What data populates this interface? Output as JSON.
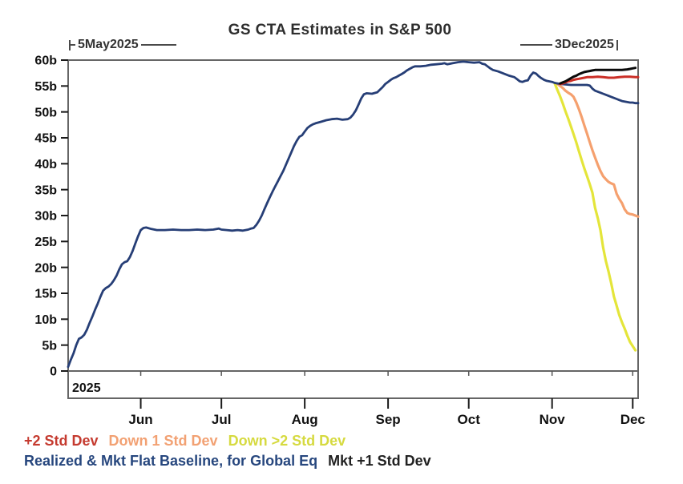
{
  "title": "GS CTA Estimates in S&P 500",
  "annotations": {
    "start_label": "5May2025",
    "end_label": "3Dec2025"
  },
  "legend": {
    "row1": [
      {
        "label": "+2 Std Dev",
        "color": "#c53b30"
      },
      {
        "label": "Down 1 Std Dev",
        "color": "#f2a173"
      },
      {
        "label": "Down >2 Std Dev",
        "color": "#d6da40"
      }
    ],
    "row2": [
      {
        "label": "Realized & Mkt Flat Baseline, for Global Eq",
        "color": "#27477e"
      },
      {
        "label": "Mkt +1 Std Dev",
        "color": "#222222"
      }
    ]
  },
  "chart_data": {
    "type": "line",
    "title": "GS CTA Estimates in S&P 500",
    "units": "billions USD (b)",
    "frame_color": "#666666",
    "grid": false,
    "x_axis": {
      "unit": "days since 5May2025",
      "domain_days": [
        0,
        212
      ],
      "start_label": "5May2025",
      "end_label": "3Dec2025",
      "year": "2025",
      "ticks": [
        {
          "label": "Jun",
          "day": 27
        },
        {
          "label": "Jul",
          "day": 57
        },
        {
          "label": "Aug",
          "day": 88
        },
        {
          "label": "Sep",
          "day": 119
        },
        {
          "label": "Oct",
          "day": 149
        },
        {
          "label": "Nov",
          "day": 180
        },
        {
          "label": "Dec",
          "day": 210
        }
      ]
    },
    "y_axis": {
      "min": 0,
      "max": 60,
      "ticks": [
        {
          "value": 0,
          "label": "0"
        },
        {
          "value": 5,
          "label": "5b"
        },
        {
          "value": 10,
          "label": "10b"
        },
        {
          "value": 15,
          "label": "15b"
        },
        {
          "value": 20,
          "label": "20b"
        },
        {
          "value": 25,
          "label": "25b"
        },
        {
          "value": 30,
          "label": "30b"
        },
        {
          "value": 35,
          "label": "35b"
        },
        {
          "value": 40,
          "label": "40b"
        },
        {
          "value": 45,
          "label": "45b"
        },
        {
          "value": 50,
          "label": "50b"
        },
        {
          "value": 55,
          "label": "55b"
        },
        {
          "value": 60,
          "label": "60b"
        }
      ]
    },
    "series": [
      {
        "id": "down-gt2-std-dev",
        "name": "Down >2 Std Dev",
        "color": "#e4e53a",
        "width": 3.2,
        "points": [
          [
            181,
            55.5
          ],
          [
            182,
            54.2
          ],
          [
            183,
            53.0
          ],
          [
            184,
            51.6
          ],
          [
            185,
            50.1
          ],
          [
            186,
            48.7
          ],
          [
            187,
            47.2
          ],
          [
            188,
            45.7
          ],
          [
            189,
            44.1
          ],
          [
            190,
            42.4
          ],
          [
            191,
            40.7
          ],
          [
            192,
            39.1
          ],
          [
            193,
            37.6
          ],
          [
            194,
            36.1
          ],
          [
            195,
            34.4
          ],
          [
            196,
            31.5
          ],
          [
            197,
            29.5
          ],
          [
            198,
            27.2
          ],
          [
            199,
            23.8
          ],
          [
            200,
            21.2
          ],
          [
            201,
            19.2
          ],
          [
            202,
            16.9
          ],
          [
            203,
            14.4
          ],
          [
            204,
            12.6
          ],
          [
            205,
            10.8
          ],
          [
            206,
            9.4
          ],
          [
            207,
            8.2
          ],
          [
            208,
            6.8
          ],
          [
            209,
            5.6
          ],
          [
            210,
            4.8
          ],
          [
            211,
            4.0
          ]
        ]
      },
      {
        "id": "down-1-std-dev",
        "name": "Down 1 Std Dev",
        "color": "#f5a06e",
        "width": 3.2,
        "points": [
          [
            182,
            55.4
          ],
          [
            183,
            55.0
          ],
          [
            184,
            54.6
          ],
          [
            185,
            54.1
          ],
          [
            186,
            53.7
          ],
          [
            187,
            53.4
          ],
          [
            188,
            52.9
          ],
          [
            189,
            51.8
          ],
          [
            190,
            50.5
          ],
          [
            191,
            49.0
          ],
          [
            192,
            47.4
          ],
          [
            193,
            45.8
          ],
          [
            194,
            44.2
          ],
          [
            195,
            42.6
          ],
          [
            196,
            41.2
          ],
          [
            197,
            39.8
          ],
          [
            198,
            38.6
          ],
          [
            199,
            37.6
          ],
          [
            200,
            37.0
          ],
          [
            201,
            36.5
          ],
          [
            202,
            36.2
          ],
          [
            203,
            36.0
          ],
          [
            204,
            34.2
          ],
          [
            205,
            33.2
          ],
          [
            206,
            32.4
          ],
          [
            207,
            31.2
          ],
          [
            208,
            30.5
          ],
          [
            209,
            30.3
          ],
          [
            210,
            30.2
          ],
          [
            211,
            30.0
          ],
          [
            212,
            29.8
          ]
        ]
      },
      {
        "id": "realized-baseline",
        "name": "Realized & Mkt Flat Baseline, for Global Eq",
        "color": "#263e76",
        "width": 2.8,
        "points": [
          [
            0,
            0.8
          ],
          [
            1,
            2.2
          ],
          [
            2,
            3.4
          ],
          [
            3,
            5.0
          ],
          [
            4,
            6.2
          ],
          [
            5,
            6.5
          ],
          [
            6,
            7.0
          ],
          [
            7,
            8.0
          ],
          [
            8,
            9.3
          ],
          [
            9,
            10.5
          ],
          [
            10,
            11.8
          ],
          [
            11,
            13.0
          ],
          [
            12,
            14.3
          ],
          [
            13,
            15.5
          ],
          [
            14,
            16.0
          ],
          [
            15,
            16.3
          ],
          [
            16,
            16.8
          ],
          [
            17,
            17.5
          ],
          [
            18,
            18.4
          ],
          [
            19,
            19.6
          ],
          [
            20,
            20.6
          ],
          [
            21,
            21.0
          ],
          [
            22,
            21.2
          ],
          [
            23,
            22.0
          ],
          [
            24,
            23.2
          ],
          [
            25,
            24.6
          ],
          [
            26,
            26.0
          ],
          [
            27,
            27.2
          ],
          [
            28,
            27.6
          ],
          [
            29,
            27.7
          ],
          [
            31,
            27.4
          ],
          [
            33,
            27.2
          ],
          [
            36,
            27.2
          ],
          [
            39,
            27.3
          ],
          [
            42,
            27.2
          ],
          [
            45,
            27.2
          ],
          [
            48,
            27.3
          ],
          [
            51,
            27.2
          ],
          [
            54,
            27.3
          ],
          [
            56,
            27.5
          ],
          [
            57,
            27.3
          ],
          [
            59,
            27.2
          ],
          [
            61,
            27.1
          ],
          [
            63,
            27.2
          ],
          [
            65,
            27.1
          ],
          [
            67,
            27.3
          ],
          [
            68,
            27.5
          ],
          [
            69,
            27.6
          ],
          [
            70,
            28.2
          ],
          [
            71,
            29.0
          ],
          [
            72,
            30.0
          ],
          [
            73,
            31.2
          ],
          [
            74,
            32.4
          ],
          [
            75,
            33.5
          ],
          [
            76,
            34.6
          ],
          [
            77,
            35.6
          ],
          [
            78,
            36.6
          ],
          [
            79,
            37.6
          ],
          [
            80,
            38.6
          ],
          [
            81,
            39.8
          ],
          [
            82,
            41.0
          ],
          [
            83,
            42.2
          ],
          [
            84,
            43.4
          ],
          [
            85,
            44.4
          ],
          [
            86,
            45.2
          ],
          [
            87,
            45.5
          ],
          [
            88,
            46.2
          ],
          [
            89,
            46.9
          ],
          [
            90,
            47.3
          ],
          [
            91,
            47.6
          ],
          [
            92,
            47.8
          ],
          [
            94,
            48.1
          ],
          [
            96,
            48.4
          ],
          [
            98,
            48.6
          ],
          [
            100,
            48.7
          ],
          [
            102,
            48.5
          ],
          [
            104,
            48.6
          ],
          [
            105,
            48.9
          ],
          [
            106,
            49.5
          ],
          [
            107,
            50.3
          ],
          [
            108,
            51.4
          ],
          [
            109,
            52.6
          ],
          [
            110,
            53.4
          ],
          [
            111,
            53.6
          ],
          [
            113,
            53.5
          ],
          [
            115,
            53.8
          ],
          [
            116,
            54.3
          ],
          [
            117,
            54.8
          ],
          [
            118,
            55.4
          ],
          [
            119,
            55.8
          ],
          [
            120,
            56.2
          ],
          [
            121,
            56.5
          ],
          [
            122,
            56.7
          ],
          [
            123,
            57.0
          ],
          [
            124,
            57.3
          ],
          [
            125,
            57.6
          ],
          [
            126,
            58.0
          ],
          [
            127,
            58.3
          ],
          [
            128,
            58.6
          ],
          [
            129,
            58.8
          ],
          [
            131,
            58.8
          ],
          [
            133,
            58.9
          ],
          [
            135,
            59.1
          ],
          [
            137,
            59.2
          ],
          [
            139,
            59.3
          ],
          [
            140,
            59.4
          ],
          [
            141,
            59.2
          ],
          [
            143,
            59.4
          ],
          [
            145,
            59.6
          ],
          [
            147,
            59.7
          ],
          [
            149,
            59.6
          ],
          [
            151,
            59.5
          ],
          [
            153,
            59.6
          ],
          [
            154,
            59.3
          ],
          [
            155,
            59.2
          ],
          [
            156,
            58.8
          ],
          [
            157,
            58.4
          ],
          [
            158,
            58.1
          ],
          [
            160,
            57.8
          ],
          [
            162,
            57.4
          ],
          [
            164,
            57.0
          ],
          [
            166,
            56.7
          ],
          [
            167,
            56.3
          ],
          [
            168,
            55.9
          ],
          [
            169,
            55.8
          ],
          [
            170,
            56.0
          ],
          [
            171,
            56.1
          ],
          [
            172,
            57.0
          ],
          [
            173,
            57.6
          ],
          [
            174,
            57.4
          ],
          [
            175,
            56.9
          ],
          [
            176,
            56.5
          ],
          [
            177,
            56.2
          ],
          [
            178,
            56.0
          ],
          [
            180,
            55.8
          ],
          [
            181,
            55.6
          ],
          [
            182,
            55.5
          ],
          [
            183,
            55.4
          ],
          [
            185,
            55.3
          ],
          [
            187,
            55.2
          ],
          [
            189,
            55.2
          ],
          [
            191,
            55.2
          ],
          [
            193,
            55.2
          ],
          [
            194,
            55.1
          ],
          [
            195,
            54.5
          ],
          [
            196,
            54.1
          ],
          [
            197,
            53.9
          ],
          [
            198,
            53.7
          ],
          [
            199,
            53.5
          ],
          [
            200,
            53.3
          ],
          [
            201,
            53.1
          ],
          [
            202,
            52.9
          ],
          [
            203,
            52.7
          ],
          [
            204,
            52.5
          ],
          [
            205,
            52.3
          ],
          [
            206,
            52.1
          ],
          [
            207,
            52.0
          ],
          [
            208,
            51.9
          ],
          [
            209,
            51.8
          ],
          [
            210,
            51.8
          ],
          [
            211,
            51.7
          ],
          [
            212,
            51.7
          ]
        ]
      },
      {
        "id": "plus-2-std-dev",
        "name": "+2 Std Dev",
        "color": "#cb2f27",
        "width": 3,
        "points": [
          [
            183,
            55.4
          ],
          [
            184,
            55.5
          ],
          [
            185,
            55.7
          ],
          [
            186,
            55.9
          ],
          [
            187,
            56.0
          ],
          [
            188,
            56.2
          ],
          [
            189,
            56.3
          ],
          [
            190,
            56.4
          ],
          [
            191,
            56.5
          ],
          [
            192,
            56.6
          ],
          [
            193,
            56.7
          ],
          [
            195,
            56.7
          ],
          [
            197,
            56.8
          ],
          [
            199,
            56.7
          ],
          [
            201,
            56.6
          ],
          [
            203,
            56.6
          ],
          [
            205,
            56.7
          ],
          [
            207,
            56.8
          ],
          [
            209,
            56.8
          ],
          [
            211,
            56.7
          ],
          [
            212,
            56.7
          ]
        ]
      },
      {
        "id": "mkt-plus-1-std-dev",
        "name": "Mkt +1 Std Dev",
        "color": "#0a0a0a",
        "width": 3,
        "points": [
          [
            183,
            55.5
          ],
          [
            184,
            55.7
          ],
          [
            185,
            55.9
          ],
          [
            186,
            56.2
          ],
          [
            187,
            56.5
          ],
          [
            188,
            56.8
          ],
          [
            189,
            57.0
          ],
          [
            190,
            57.3
          ],
          [
            191,
            57.5
          ],
          [
            192,
            57.7
          ],
          [
            193,
            57.8
          ],
          [
            194,
            57.9
          ],
          [
            195,
            58.0
          ],
          [
            196,
            58.1
          ],
          [
            198,
            58.1
          ],
          [
            200,
            58.1
          ],
          [
            202,
            58.1
          ],
          [
            204,
            58.1
          ],
          [
            206,
            58.1
          ],
          [
            208,
            58.2
          ],
          [
            209,
            58.3
          ],
          [
            210,
            58.4
          ],
          [
            211,
            58.5
          ]
        ]
      }
    ]
  }
}
